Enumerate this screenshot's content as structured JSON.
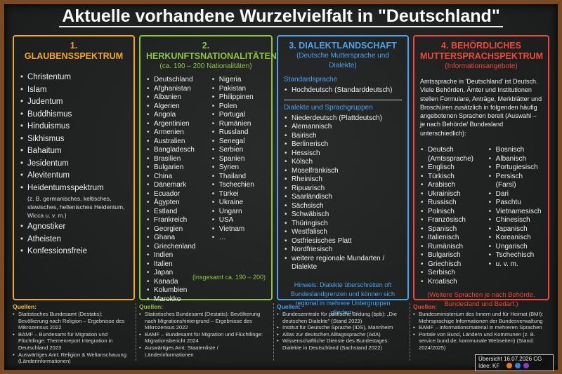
{
  "title": "Aktuelle vorhandene Wurzelvielfalt in \"Deutschland\"",
  "columns": [
    {
      "heading": "1. GLAUBENSSPEKTRUM",
      "items": [
        "Christentum",
        "Islam",
        "Judentum",
        "Buddhismus",
        "Hinduismus",
        "Sikhismus",
        "Bahaitum",
        "Jesidentum",
        "Alevitentum",
        "Heidentumsspektrum"
      ],
      "note": "(z. B. germanisches, keltisches, slawisches, hellenisches Heidentum, Wicca u. v. m.)",
      "items_more": [
        "Agnostiker",
        "Atheisten",
        "Konfessionsfreie"
      ],
      "sources": {
        "label": "Quellen:",
        "items": [
          "Statistisches Bundesamt (Destatis): Bevölkerung nach Religion – Ergebnisse des Mikrozensus 2022",
          "BAMF – Bundesamt für Migration und Flüchtlinge: Themenreport Integration in Deutschland 2023",
          "Auswärtiges Amt: Religion & Weltanschauung (Länderinformationen)"
        ]
      }
    },
    {
      "heading": "2. HERKUNFTSNATIONALITÄTEN",
      "subheading": "(ca. 190 – 200 Nationalitäten)",
      "list_left": [
        "Deutschland",
        "Afghanistan",
        "Albanien",
        "Algerien",
        "Angola",
        "Argentinien",
        "Armenien",
        "Australien",
        "Bangladesch",
        "Brasilien",
        "Bulgarien",
        "China",
        "Dänemark",
        "Ecuador",
        "Ägypten",
        "Estland",
        "Frankreich",
        "Georgien",
        "Ghana",
        "Griechenland",
        "Indien",
        "Italien",
        "Japan",
        "Kanada",
        "Kolumbien",
        "Marokko"
      ],
      "list_right": [
        "Nigeria",
        "Pakistan",
        "Philippinen",
        "Polen",
        "Portugal",
        "Rumänien",
        "Russland",
        "Senegal",
        "Serbien",
        "Spanien",
        "Syrien",
        "Thailand",
        "Tschechien",
        "Türkei",
        "Ukraine",
        "Ungarn",
        "USA",
        "Vietnam",
        "…"
      ],
      "footer": "(insgesamt ca. 190 – 200)",
      "sources": {
        "label": "Quellen:",
        "items": [
          "Statistisches Bundesamt (Destatis): Bevölkerung nach Migrationshintergrund – Ergebnisse des Mikrozensus 2022",
          "BAMF – Bundesamt für Migration und Flüchtlinge: Migrationsbericht 2024",
          "Auswärtiges Amt: Staatenliste / Länderinformationen"
        ]
      }
    },
    {
      "heading": "3. DIALEKTLANDSCHAFT",
      "subheading": "(Deutsche Muttersprache und Dialekte)",
      "section1": {
        "title": "Standardsprache",
        "items": [
          "Hochdeutsch (Standarddeutsch)"
        ]
      },
      "section2": {
        "title": "Dialekte und Sprachgruppen",
        "items": [
          "Niederdeutsch (Plattdeutsch)",
          "Alemannisch",
          "Bairisch",
          "Berlinerisch",
          "Hessisch",
          "Kölsch",
          "Moselfränkisch",
          "Rheinisch",
          "Ripuarisch",
          "Saarländisch",
          "Sächsisch",
          "Schwäbisch",
          "Thüringisch",
          "Westfälisch",
          "Ostfriesisches Platt",
          "Nordfriesisch",
          "weitere regionale Mundarten / Dialekte"
        ]
      },
      "note": "Hinweis: Dialekte überschreiten oft Bundeslandgrenzen und können sich regional in mehrere Untergruppen gliedern.",
      "sources": {
        "label": "Quellen:",
        "items": [
          "Bundeszentrale für politische Bildung (bpb): „Die deutschen Dialekte\" (Stand 2023)",
          "Institut für Deutsche Sprache (IDS), Mannheim",
          "Atlas zur deutschen Alltagssprache (AdA)",
          "Wissenschaftliche Dienste des Bundestages: Dialekte in Deutschland (Sachstand 2022)"
        ]
      }
    },
    {
      "heading": "4. BEHÖRDLICHES MUTTERSPRACHSPEKTRUM",
      "subheading": "(Informationsangebote)",
      "intro": "Amtssprache in 'Deutschland' ist Deutsch. Viele Behörden, Ämter und Institutionen stellen Formulare, Anträge, Merkblätter und Broschüren zusätzlich in folgenden häufig angebotenen Sprachen bereit (Auswahl – je nach Behörde/ Bundesland unterschiedlich):",
      "list_left": [
        "Deutsch (Amtssprache)",
        "Englisch",
        "Türkisch",
        "Arabisch",
        "Ukrainisch",
        "Russisch",
        "Polnisch",
        "Französisch",
        "Spanisch",
        "Italienisch",
        "Rumänisch",
        "Bulgarisch",
        "Griechisch",
        "Serbisch",
        "Kroatisch"
      ],
      "list_right": [
        "Bosnisch",
        "Albanisch",
        "Portugiesisch",
        "Persisch (Farsi)",
        "Dari",
        "Paschtu",
        "Vietnamesisch",
        "Chinesisch",
        "Japanisch",
        "Koreanisch",
        "Ungarisch",
        "Tschechisch",
        "u. v. m."
      ],
      "footer": "(Weitere Sprachen je nach Behörde, Bundesland und Bedarf.)",
      "sources": {
        "label": "Quellen:",
        "items": [
          "Bundesministerium des Innern und für Heimat (BMI): Mehrsprachige Informationen der Bundesverwaltung",
          "BAMF – Informationsmaterial in mehreren Sprachen",
          "Portale von Bund, Ländern und Kommunen (z. B. service.bund.de, kommunale Webseiten) (Stand: 2024/2025)"
        ]
      }
    }
  ],
  "credits": {
    "line1": "Übersicht 16.07.2026 CG",
    "line2": "Idee: KF"
  }
}
